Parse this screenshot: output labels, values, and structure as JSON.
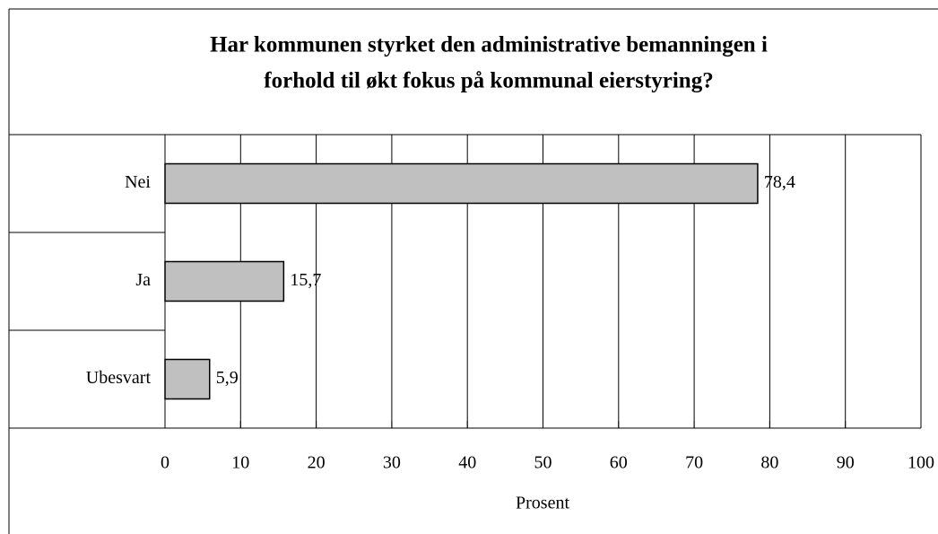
{
  "chart_data": {
    "type": "hbar",
    "title": [
      "Har kommunen styrket den administrative bemanningen i",
      "forhold til økt fokus på kommunal eierstyring?"
    ],
    "categories": [
      "Nei",
      "Ja",
      "Ubesvart"
    ],
    "values": [
      78.4,
      15.7,
      5.9
    ],
    "value_labels": [
      "78,4",
      "15,7",
      "5,9"
    ],
    "color": "#c0c0c0",
    "xlabel": "Prosent",
    "xlim": [
      0,
      100
    ],
    "xticks": [
      0,
      10,
      20,
      30,
      40,
      50,
      60,
      70,
      80,
      90,
      100
    ],
    "grid": true
  }
}
